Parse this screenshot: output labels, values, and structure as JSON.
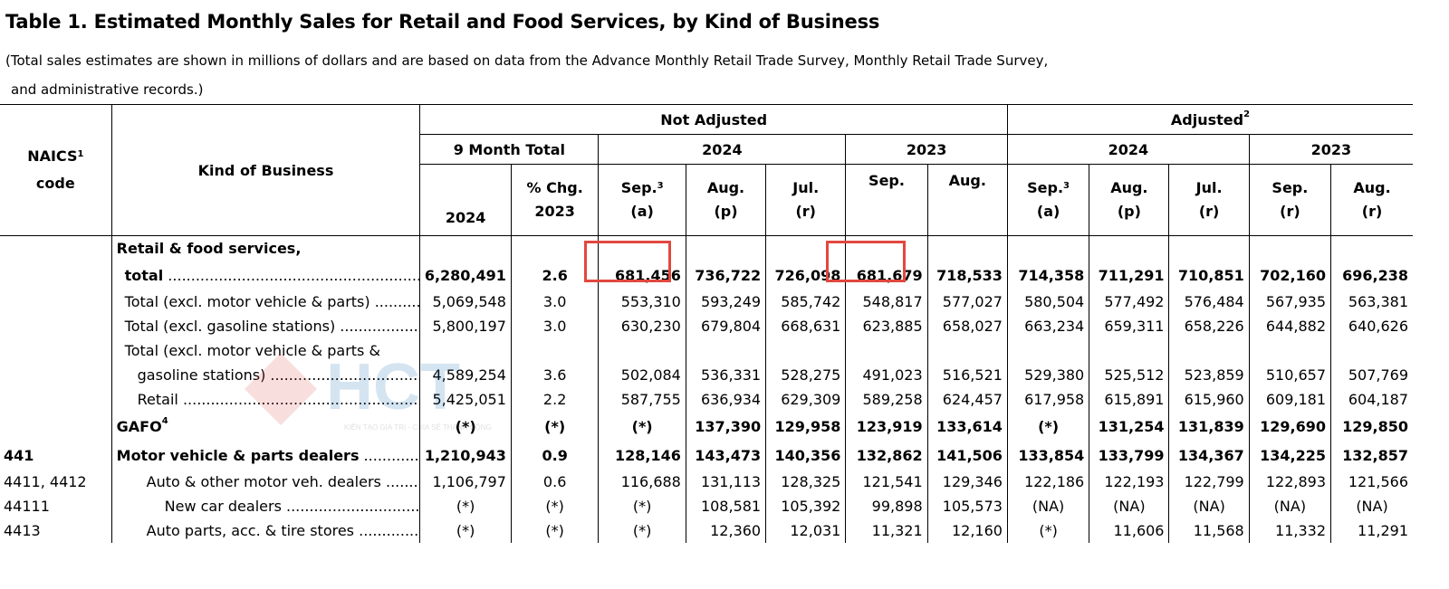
{
  "title": "Table 1.  Estimated Monthly Sales for Retail and Food Services, by Kind of Business",
  "note_line1": "(Total sales estimates are shown in millions of dollars and are based on data from the Advance Monthly Retail Trade Survey, Monthly Retail Trade Survey,",
  "note_line2": "and administrative records.)",
  "headers": {
    "naics": "NAICS",
    "naics_sup": "1",
    "naics_code": "code",
    "kind": "Kind of Business",
    "not_adjusted": "Not Adjusted",
    "adjusted": "Adjusted",
    "adjusted_sup": "2",
    "nine_month": "9 Month Total",
    "y2024a": "2024",
    "y2023a": "2023",
    "y2024b": "2024",
    "y2023b": "2023",
    "c_2024": "2024",
    "c_pct1": "% Chg.",
    "c_pct2": "2023",
    "na_sep": "Sep.",
    "na_sep_sup": "3",
    "na_sep_sub": "(a)",
    "na_aug": "Aug.",
    "na_aug_sub": "(p)",
    "na_jul": "Jul.",
    "na_jul_sub": "(r)",
    "na_sep23": "Sep.",
    "na_aug23": "Aug.",
    "ad_sep": "Sep.",
    "ad_sep_sup": "3",
    "ad_sep_sub": "(a)",
    "ad_aug": "Aug.",
    "ad_aug_sub": "(p)",
    "ad_jul": "Jul.",
    "ad_jul_sub": "(r)",
    "ad_sep23": "Sep.",
    "ad_sep23_sub": "(r)",
    "ad_aug23": "Aug.",
    "ad_aug23_sub": "(r)"
  },
  "rows": [
    {
      "code": "",
      "label": "Retail & food services,",
      "vals": [
        "",
        "",
        "",
        "",
        "",
        "",
        "",
        "",
        "",
        "",
        "",
        ""
      ]
    },
    {
      "code": "",
      "label": "total",
      "vals": [
        "6,280,491",
        "2.6",
        "681,456",
        "736,722",
        "726,098",
        "681,679",
        "718,533",
        "714,358",
        "711,291",
        "710,851",
        "702,160",
        "696,238"
      ]
    },
    {
      "code": "",
      "label": "Total (excl. motor vehicle & parts)",
      "vals": [
        "5,069,548",
        "3.0",
        "553,310",
        "593,249",
        "585,742",
        "548,817",
        "577,027",
        "580,504",
        "577,492",
        "576,484",
        "567,935",
        "563,381"
      ]
    },
    {
      "code": "",
      "label": "Total (excl. gasoline stations)",
      "vals": [
        "5,800,197",
        "3.0",
        "630,230",
        "679,804",
        "668,631",
        "623,885",
        "658,027",
        "663,234",
        "659,311",
        "658,226",
        "644,882",
        "640,626"
      ]
    },
    {
      "code": "",
      "label": "Total (excl. motor vehicle & parts &",
      "vals": [
        "",
        "",
        "",
        "",
        "",
        "",
        "",
        "",
        "",
        "",
        "",
        ""
      ]
    },
    {
      "code": "",
      "label": "gasoline stations)",
      "vals": [
        "4,589,254",
        "3.6",
        "502,084",
        "536,331",
        "528,275",
        "491,023",
        "516,521",
        "529,380",
        "525,512",
        "523,859",
        "510,657",
        "507,769"
      ]
    },
    {
      "code": "",
      "label": "Retail",
      "vals": [
        "5,425,051",
        "2.2",
        "587,755",
        "636,934",
        "629,309",
        "589,258",
        "624,457",
        "617,958",
        "615,891",
        "615,960",
        "609,181",
        "604,187"
      ]
    },
    {
      "code": "",
      "label": "GAFO",
      "label_sup": "4",
      "vals": [
        "(*)",
        "(*)",
        "(*)",
        "137,390",
        "129,958",
        "123,919",
        "133,614",
        "(*)",
        "131,254",
        "131,839",
        "129,690",
        "129,850"
      ]
    },
    {
      "code": "441",
      "label": "Motor vehicle & parts dealers",
      "vals": [
        "1,210,943",
        "0.9",
        "128,146",
        "143,473",
        "140,356",
        "132,862",
        "141,506",
        "133,854",
        "133,799",
        "134,367",
        "134,225",
        "132,857"
      ]
    },
    {
      "code": "4411, 4412",
      "label": "Auto & other motor veh. dealers",
      "vals": [
        "1,106,797",
        "0.6",
        "116,688",
        "131,113",
        "128,325",
        "121,541",
        "129,346",
        "122,186",
        "122,193",
        "122,799",
        "122,893",
        "121,566"
      ]
    },
    {
      "code": "44111",
      "label": "New car dealers",
      "vals": [
        "(*)",
        "(*)",
        "(*)",
        "108,581",
        "105,392",
        "99,898",
        "105,573",
        "(NA)",
        "(NA)",
        "(NA)",
        "(NA)",
        "(NA)"
      ]
    },
    {
      "code": "4413",
      "label": "Auto parts, acc. & tire stores",
      "vals": [
        "(*)",
        "(*)",
        "(*)",
        "12,360",
        "12,031",
        "11,321",
        "12,160",
        "(*)",
        "11,606",
        "11,568",
        "11,332",
        "11,291"
      ]
    }
  ],
  "highlight_color": "#e0483f",
  "watermark": {
    "text": "HCT",
    "tagline": "KIẾN TẠO GIÁ TRỊ - CHIA SẺ THÀNH CÔNG",
    "color": "#1e6fb8"
  }
}
